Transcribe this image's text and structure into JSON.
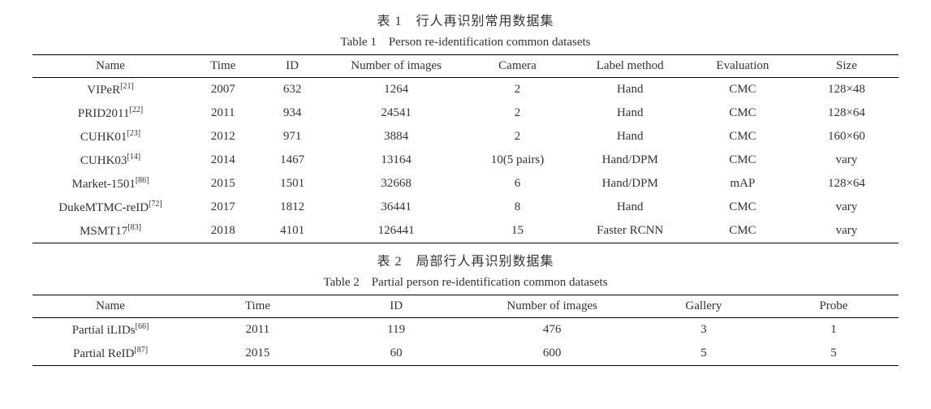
{
  "colors": {
    "background": "#ffffff",
    "text": "#333333",
    "rule": "#000000"
  },
  "typography": {
    "base_font_family": "Times New Roman, SimSun, serif",
    "base_font_size_pt": 11,
    "caption_cn_font_size_pt": 12,
    "sup_font_size_pt": 8
  },
  "table1": {
    "caption_cn": "表 1　行人再识别常用数据集",
    "caption_en": "Table 1　Person re-identification common datasets",
    "columns": [
      "Name",
      "Time",
      "ID",
      "Number of images",
      "Camera",
      "Label method",
      "Evaluation",
      "Size"
    ],
    "col_widths_pct": [
      18,
      8,
      8,
      16,
      12,
      14,
      12,
      12
    ],
    "rows": [
      {
        "name": "VIPeR",
        "ref": "[21]",
        "time": "2007",
        "id": "632",
        "num_images": "1264",
        "camera": "2",
        "label_method": "Hand",
        "evaluation": "CMC",
        "size": "128×48"
      },
      {
        "name": "PRID2011",
        "ref": "[22]",
        "time": "2011",
        "id": "934",
        "num_images": "24541",
        "camera": "2",
        "label_method": "Hand",
        "evaluation": "CMC",
        "size": "128×64"
      },
      {
        "name": "CUHK01",
        "ref": "[23]",
        "time": "2012",
        "id": "971",
        "num_images": "3884",
        "camera": "2",
        "label_method": "Hand",
        "evaluation": "CMC",
        "size": "160×60"
      },
      {
        "name": "CUHK03",
        "ref": "[14]",
        "time": "2014",
        "id": "1467",
        "num_images": "13164",
        "camera": "10(5 pairs)",
        "label_method": "Hand/DPM",
        "evaluation": "CMC",
        "size": "vary"
      },
      {
        "name": "Market-1501",
        "ref": "[86]",
        "time": "2015",
        "id": "1501",
        "num_images": "32668",
        "camera": "6",
        "label_method": "Hand/DPM",
        "evaluation": "mAP",
        "size": "128×64"
      },
      {
        "name": "DukeMTMC-reID",
        "ref": "[72]",
        "time": "2017",
        "id": "1812",
        "num_images": "36441",
        "camera": "8",
        "label_method": "Hand",
        "evaluation": "CMC",
        "size": "vary"
      },
      {
        "name": "MSMT17",
        "ref": "[83]",
        "time": "2018",
        "id": "4101",
        "num_images": "126441",
        "camera": "15",
        "label_method": "Faster RCNN",
        "evaluation": "CMC",
        "size": "vary"
      }
    ]
  },
  "table2": {
    "caption_cn": "表 2　局部行人再识别数据集",
    "caption_en": "Table 2　Partial person re-identification common datasets",
    "columns": [
      "Name",
      "Time",
      "ID",
      "Number of images",
      "Gallery",
      "Probe"
    ],
    "col_widths_pct": [
      18,
      16,
      16,
      20,
      15,
      15
    ],
    "rows": [
      {
        "name": "Partial iLIDs",
        "ref": "[66]",
        "time": "2011",
        "id": "119",
        "num_images": "476",
        "gallery": "3",
        "probe": "1"
      },
      {
        "name": "Partial ReID",
        "ref": "[87]",
        "time": "2015",
        "id": "60",
        "num_images": "600",
        "gallery": "5",
        "probe": "5"
      }
    ]
  }
}
